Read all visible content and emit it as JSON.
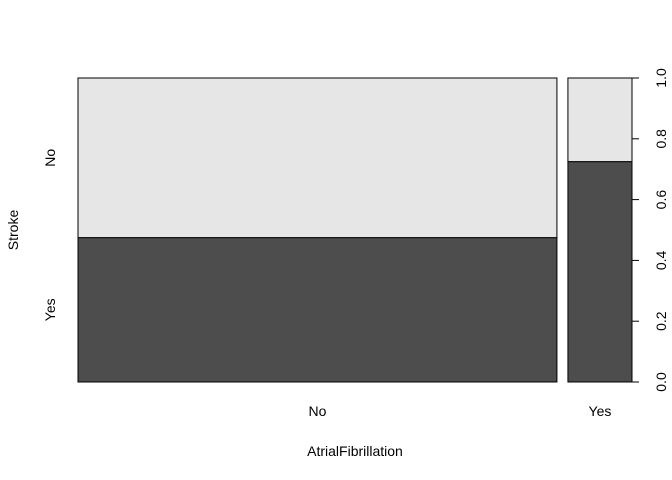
{
  "chart_data": {
    "type": "spineplot",
    "xlabel": "AtrialFibrillation",
    "ylabel": "Stroke",
    "categories": [
      "No",
      "Yes"
    ],
    "category_share": [
      0.882,
      0.118
    ],
    "levels": [
      "Yes",
      "No"
    ],
    "series": [
      {
        "name": "Yes",
        "color": "#4d4d4d",
        "values": [
          0.475,
          0.725
        ]
      },
      {
        "name": "No",
        "color": "#e6e6e6",
        "values": [
          0.525,
          0.275
        ]
      }
    ],
    "ylim": [
      0,
      1
    ],
    "yticks": [
      "0.0",
      "0.2",
      "0.4",
      "0.6",
      "0.8",
      "1.0"
    ],
    "grid": false,
    "legend": "none"
  }
}
